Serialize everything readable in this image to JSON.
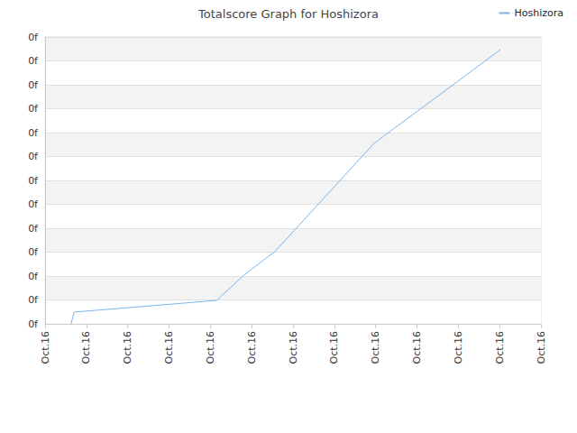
{
  "chart_data": {
    "type": "line",
    "title": "Totalscore Graph for Hoshizora",
    "x": [
      0.63,
      0.7,
      4.15,
      4.84,
      5.56,
      7.96,
      11.02
    ],
    "series": [
      {
        "name": "Hoshizora",
        "color": "#7cb5ec",
        "values": [
          0,
          0.49,
          0.98,
          2.08,
          3.02,
          7.55,
          11.47
        ]
      }
    ],
    "xlim": [
      0,
      12
    ],
    "xticks": [
      {
        "value": 0,
        "label": "Oct.16"
      },
      {
        "value": 1,
        "label": "Oct.16"
      },
      {
        "value": 2,
        "label": "Oct.16"
      },
      {
        "value": 3,
        "label": "Oct.16"
      },
      {
        "value": 4,
        "label": "Oct.16"
      },
      {
        "value": 5,
        "label": "Oct.16"
      },
      {
        "value": 6,
        "label": "Oct.16"
      },
      {
        "value": 7,
        "label": "Oct.16"
      },
      {
        "value": 8,
        "label": "Oct.16"
      },
      {
        "value": 9,
        "label": "Oct.16"
      },
      {
        "value": 10,
        "label": "Oct.16"
      },
      {
        "value": 11,
        "label": "Oct.16"
      },
      {
        "value": 12,
        "label": "Oct.16"
      }
    ],
    "ylim": [
      0,
      12
    ],
    "yticks": [
      {
        "value": 0,
        "label": "0f"
      },
      {
        "value": 1,
        "label": "0f"
      },
      {
        "value": 2,
        "label": "0f"
      },
      {
        "value": 3,
        "label": "0f"
      },
      {
        "value": 4,
        "label": "0f"
      },
      {
        "value": 5,
        "label": "0f"
      },
      {
        "value": 6,
        "label": "0f"
      },
      {
        "value": 7,
        "label": "0f"
      },
      {
        "value": 8,
        "label": "0f"
      },
      {
        "value": 9,
        "label": "0f"
      },
      {
        "value": 10,
        "label": "0f"
      },
      {
        "value": 11,
        "label": "0f"
      },
      {
        "value": 12,
        "label": "0f"
      }
    ],
    "grid": true,
    "legend": "top-right"
  }
}
